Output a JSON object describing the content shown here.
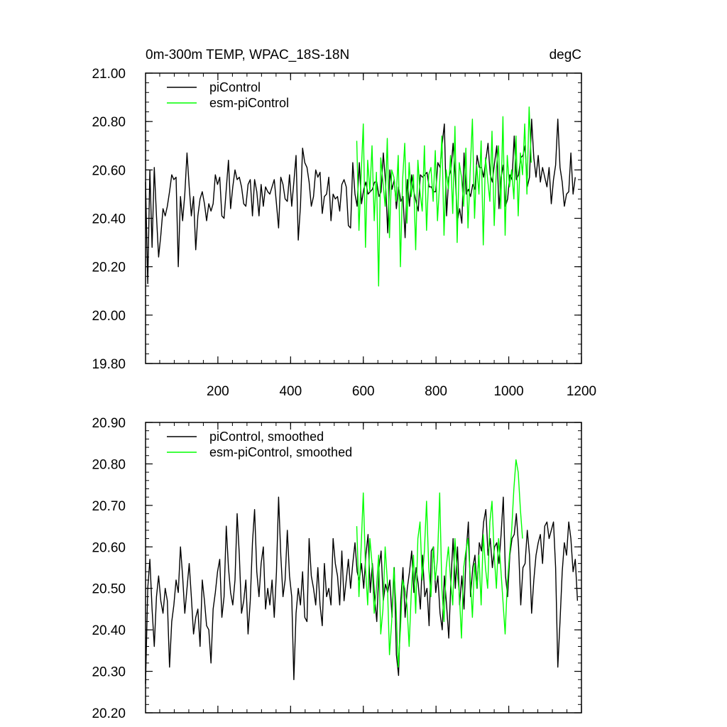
{
  "figure": {
    "title_left": "0m-300m TEMP, WPAC_18S-18N",
    "title_right": "degC"
  },
  "chart_data": [
    {
      "type": "line",
      "title": "0m-300m TEMP, WPAC_18S-18N",
      "units": "degC",
      "xlabel": "",
      "ylabel": "",
      "xlim": [
        1,
        1200
      ],
      "ylim": [
        19.8,
        21.0
      ],
      "x_ticks": [
        "200",
        "400",
        "600",
        "800",
        "1000",
        "1200"
      ],
      "y_ticks": [
        "19.80",
        "20.00",
        "20.20",
        "20.40",
        "20.60",
        "20.80",
        "21.00"
      ],
      "grid": false,
      "legend_position": "top-left",
      "series": [
        {
          "name": "piControl",
          "color": "#000000",
          "x_start": 1,
          "x_step": 6,
          "values": [
            20.55,
            20.13,
            20.6,
            20.28,
            20.61,
            20.41,
            20.24,
            20.33,
            20.44,
            20.41,
            20.45,
            20.51,
            20.58,
            20.56,
            20.57,
            20.2,
            20.49,
            20.39,
            20.5,
            20.67,
            20.53,
            20.41,
            20.49,
            20.27,
            20.41,
            20.48,
            20.51,
            20.46,
            20.39,
            20.46,
            20.43,
            20.46,
            20.58,
            20.54,
            20.57,
            20.41,
            20.4,
            20.52,
            20.64,
            20.44,
            20.53,
            20.6,
            20.56,
            20.57,
            20.53,
            20.46,
            20.45,
            20.54,
            20.56,
            20.41,
            20.56,
            20.51,
            20.41,
            20.54,
            20.45,
            20.53,
            20.51,
            20.5,
            20.53,
            20.56,
            20.46,
            20.36,
            20.57,
            20.54,
            20.48,
            20.47,
            20.58,
            20.45,
            20.55,
            20.66,
            20.31,
            20.45,
            20.69,
            20.63,
            20.61,
            20.55,
            20.45,
            20.49,
            20.6,
            20.57,
            20.59,
            20.42,
            20.49,
            20.5,
            20.57,
            20.39,
            20.5,
            20.48,
            20.49,
            20.43,
            20.54,
            20.56,
            20.53,
            20.37,
            20.36,
            20.63,
            20.5,
            20.45,
            20.63,
            20.46,
            20.52,
            20.55,
            20.5,
            20.51,
            20.52,
            20.55,
            20.55,
            20.49,
            20.51,
            20.67,
            20.55,
            20.34,
            20.6,
            20.52,
            20.56,
            20.44,
            20.53,
            20.47,
            20.49,
            20.32,
            20.56,
            20.45,
            20.58,
            20.51,
            20.47,
            20.43,
            20.58,
            20.57,
            20.58,
            20.59,
            20.53,
            20.53,
            20.51,
            20.51,
            20.63,
            20.61,
            20.71,
            20.79,
            20.41,
            20.57,
            20.6,
            20.71,
            20.57,
            20.39,
            20.44,
            20.38,
            20.67,
            20.5,
            20.52,
            20.49,
            20.54,
            20.52,
            20.66,
            20.61,
            20.61,
            20.57,
            20.64,
            20.71,
            20.58,
            20.55,
            20.63,
            20.7,
            20.44,
            20.57,
            20.62,
            20.45,
            20.48,
            20.58,
            20.56,
            20.74,
            20.56,
            20.58,
            20.65,
            20.66,
            20.7,
            20.53,
            20.57,
            20.81,
            20.65,
            20.57,
            20.66,
            20.55,
            20.61,
            20.57,
            20.53,
            20.61,
            20.46,
            20.56,
            20.62,
            20.81,
            20.61,
            20.55,
            20.45,
            20.5,
            20.51,
            20.67,
            20.5,
            20.57
          ],
          "note_range": "mean ~20.52"
        },
        {
          "name": "esm-piControl",
          "color": "#00ff00",
          "x_start": 582,
          "x_step": 6,
          "values": [
            20.72,
            20.35,
            20.58,
            20.79,
            20.28,
            20.64,
            20.51,
            20.7,
            20.39,
            20.59,
            20.12,
            20.65,
            20.55,
            20.45,
            20.73,
            20.32,
            20.6,
            20.57,
            20.47,
            20.66,
            20.2,
            20.56,
            20.71,
            20.38,
            20.63,
            20.49,
            20.58,
            20.27,
            20.64,
            20.51,
            20.43,
            20.7,
            20.35,
            20.58,
            20.61,
            20.47,
            20.68,
            20.39,
            20.55,
            20.74,
            20.33,
            20.6,
            20.52,
            20.66,
            20.42,
            20.78,
            20.3,
            20.63,
            20.57,
            20.45,
            20.69,
            20.36,
            20.6,
            20.81,
            20.4,
            20.62,
            20.5,
            20.72,
            20.29,
            20.65,
            20.56,
            20.47,
            20.76,
            20.37,
            20.61,
            20.7,
            20.44,
            20.82,
            20.33,
            20.66,
            20.53,
            20.6,
            20.48,
            20.74,
            20.41,
            20.67,
            20.58,
            20.79,
            20.5,
            20.86,
            20.63
          ]
        }
      ]
    },
    {
      "type": "line",
      "title": "",
      "xlabel": "",
      "ylabel": "",
      "xlim": [
        1,
        1200
      ],
      "ylim": [
        20.2,
        20.9
      ],
      "y_ticks": [
        "20.20",
        "20.30",
        "20.40",
        "20.50",
        "20.60",
        "20.70",
        "20.80",
        "20.90"
      ],
      "grid": false,
      "legend_position": "top-left",
      "series": [
        {
          "name": "piControl, smoothed",
          "color": "#000000",
          "x_start": 1,
          "x_step": 6,
          "values": [
            20.27,
            20.5,
            20.57,
            20.45,
            20.36,
            20.48,
            20.53,
            20.47,
            20.44,
            20.5,
            20.47,
            20.31,
            20.42,
            20.46,
            20.52,
            20.49,
            20.6,
            20.53,
            20.44,
            20.5,
            20.56,
            20.48,
            20.39,
            20.43,
            20.45,
            20.36,
            20.52,
            20.47,
            20.41,
            20.4,
            20.32,
            20.45,
            20.49,
            20.54,
            20.57,
            20.43,
            20.48,
            20.65,
            20.55,
            20.49,
            20.46,
            20.52,
            20.68,
            20.58,
            20.44,
            20.47,
            20.52,
            20.39,
            20.47,
            20.61,
            20.69,
            20.54,
            20.48,
            20.56,
            20.6,
            20.45,
            20.5,
            20.46,
            20.52,
            20.43,
            20.54,
            20.72,
            20.58,
            20.48,
            20.52,
            20.64,
            20.53,
            20.48,
            20.28,
            20.44,
            20.5,
            20.46,
            20.54,
            20.43,
            20.42,
            20.62,
            20.53,
            20.5,
            20.46,
            20.55,
            20.46,
            20.41,
            20.56,
            20.48,
            20.5,
            20.46,
            20.62,
            20.56,
            20.53,
            20.46,
            20.59,
            20.47,
            20.52,
            20.57,
            20.5,
            20.56,
            20.61,
            20.54,
            20.52,
            20.56,
            20.5,
            20.58,
            20.63,
            20.49,
            20.56,
            20.48,
            20.42,
            20.55,
            20.59,
            20.47,
            20.51,
            20.49,
            20.52,
            20.43,
            20.55,
            20.34,
            20.29,
            20.47,
            20.55,
            20.43,
            20.5,
            20.54,
            20.59,
            20.49,
            20.55,
            20.51,
            20.45,
            20.58,
            20.48,
            20.5,
            20.41,
            20.59,
            20.6,
            20.49,
            20.53,
            20.44,
            20.4,
            20.53,
            20.46,
            20.38,
            20.52,
            20.62,
            20.5,
            20.6,
            20.46,
            20.53,
            20.45,
            20.59,
            20.66,
            20.48,
            20.55,
            20.58,
            20.5,
            20.61,
            20.59,
            20.66,
            20.69,
            20.58,
            20.62,
            20.55,
            20.6,
            20.61,
            20.56,
            20.63,
            20.72,
            20.53,
            20.48,
            20.58,
            20.62,
            20.63,
            20.68,
            20.6,
            20.46,
            20.55,
            20.56,
            20.64,
            20.58,
            20.44,
            20.52,
            20.58,
            20.61,
            20.63,
            20.56,
            20.65,
            20.66,
            20.62,
            20.64,
            20.66,
            20.55,
            20.31,
            20.42,
            20.54,
            20.61,
            20.58,
            20.66,
            20.62,
            20.54,
            20.57,
            20.47
          ]
        },
        {
          "name": "esm-piControl, smoothed",
          "color": "#00ff00",
          "x_start": 582,
          "x_step": 6,
          "values": [
            20.65,
            20.48,
            20.6,
            20.73,
            20.55,
            20.46,
            20.62,
            20.56,
            20.44,
            20.5,
            20.58,
            20.39,
            20.45,
            20.6,
            20.52,
            20.34,
            20.42,
            20.55,
            20.46,
            20.31,
            20.4,
            20.52,
            20.5,
            20.46,
            20.36,
            20.49,
            20.58,
            20.44,
            20.62,
            20.66,
            20.52,
            20.59,
            20.71,
            20.55,
            20.48,
            20.6,
            20.52,
            20.57,
            20.73,
            20.5,
            20.42,
            20.55,
            20.6,
            20.52,
            20.46,
            20.62,
            20.54,
            20.49,
            20.38,
            20.55,
            20.59,
            20.62,
            20.53,
            20.43,
            20.56,
            20.5,
            20.58,
            20.46,
            20.63,
            20.55,
            20.5,
            20.66,
            20.71,
            20.58,
            20.5,
            20.62,
            20.55,
            20.47,
            20.39,
            20.51,
            20.58,
            20.64,
            20.74,
            20.81,
            20.78,
            20.69,
            20.62
          ]
        }
      ]
    }
  ]
}
